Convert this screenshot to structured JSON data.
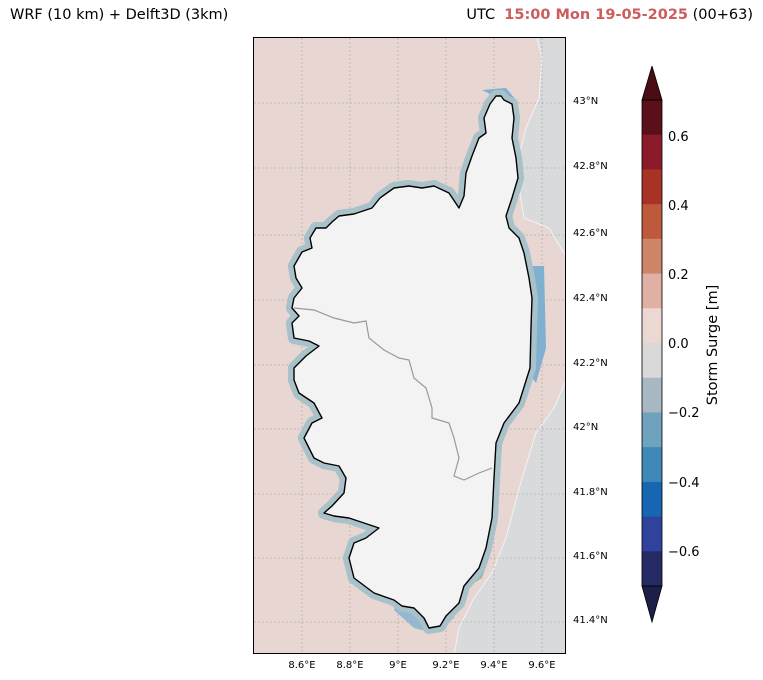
{
  "header": {
    "left_title": "WRF (10 km) + Delft3D (3km)",
    "right_prefix": "UTC",
    "right_time": "15:00 Mon 19-05-2025",
    "right_suffix": "(00+63)"
  },
  "map": {
    "lat_labels": [
      "43°N",
      "42.8°N",
      "42.6°N",
      "42.4°N",
      "42.2°N",
      "42°N",
      "41.8°N",
      "41.6°N",
      "41.4°N"
    ],
    "lon_labels": [
      "8.6°E",
      "8.8°E",
      "9°E",
      "9.2°E",
      "9.4°E",
      "9.6°E"
    ],
    "extent": {
      "lon_min": 8.4,
      "lon_max": 9.7,
      "lat_min": 41.3,
      "lat_max": 43.2
    },
    "colors": {
      "sea_surge": "#e8d6d2",
      "island_fill": "#f3f3f3",
      "coastline": "#000000",
      "shallow_negative": "#a9c2c9",
      "blue_negative": "#7fb0d0",
      "green_band": "#9eb6a4",
      "zero_gray": "#d8dadc"
    }
  },
  "colorbar": {
    "label": "Storm Surge [m]",
    "ticks": [
      "0.6",
      "0.4",
      "0.2",
      "0.0",
      "−0.2",
      "−0.4",
      "−0.6"
    ],
    "colors": [
      "#5a0f1b",
      "#8b1a2b",
      "#a83226",
      "#bd5a3c",
      "#cf8568",
      "#dfb0a3",
      "#ebd8d3",
      "#d9d9d9",
      "#a8b8c2",
      "#6fa3bd",
      "#3f88b7",
      "#1666b2",
      "#2f429c",
      "#262b66"
    ],
    "extend_top_color": "#4a0d14",
    "extend_bottom_color": "#1c2048"
  }
}
